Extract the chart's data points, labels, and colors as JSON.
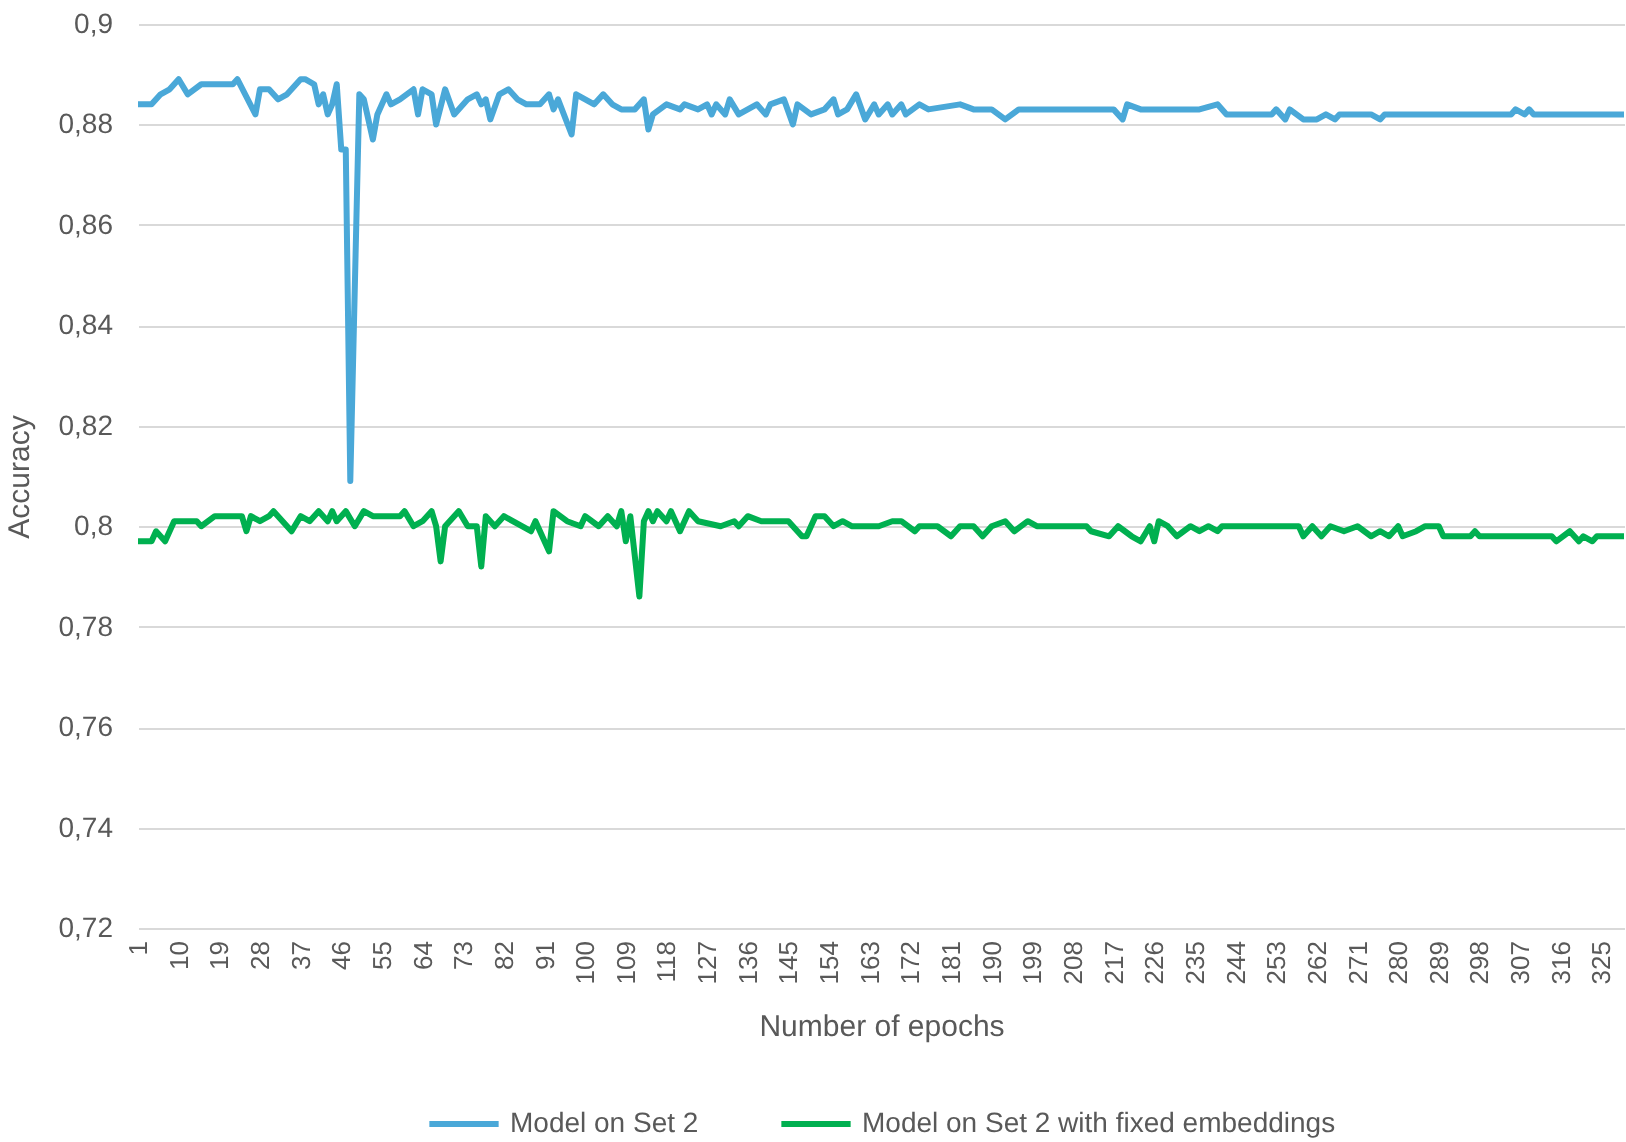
{
  "chart_data": {
    "type": "line",
    "xlabel": "Number of epochs",
    "ylabel": "Accuracy",
    "xlim": [
      1,
      330
    ],
    "xticks": [
      1,
      10,
      19,
      28,
      37,
      46,
      55,
      64,
      73,
      82,
      91,
      100,
      109,
      118,
      127,
      136,
      145,
      154,
      163,
      172,
      181,
      190,
      199,
      208,
      217,
      226,
      235,
      244,
      253,
      262,
      271,
      280,
      289,
      298,
      307,
      316,
      325
    ],
    "ylim": [
      0.72,
      0.9
    ],
    "yticks": [
      {
        "value": 0.72,
        "label": "0,72"
      },
      {
        "value": 0.74,
        "label": "0,74"
      },
      {
        "value": 0.76,
        "label": "0,76"
      },
      {
        "value": 0.78,
        "label": "0,78"
      },
      {
        "value": 0.8,
        "label": "0,8"
      },
      {
        "value": 0.82,
        "label": "0,82"
      },
      {
        "value": 0.84,
        "label": "0,84"
      },
      {
        "value": 0.86,
        "label": "0,86"
      },
      {
        "value": 0.88,
        "label": "0,88"
      },
      {
        "value": 0.9,
        "label": "0,9"
      }
    ],
    "grid": "y",
    "legend": "bottom",
    "series": [
      {
        "name": "Model on Set 2",
        "color": "#4aa8d8",
        "x": [
          1,
          4,
          6,
          8,
          10,
          12,
          15,
          22,
          23,
          27,
          28,
          30,
          32,
          34,
          37,
          38,
          40,
          41,
          42,
          43,
          44,
          45,
          46,
          47,
          48,
          50,
          51,
          53,
          54,
          56,
          57,
          59,
          62,
          63,
          64,
          66,
          67,
          69,
          71,
          74,
          76,
          77,
          78,
          79,
          81,
          83,
          85,
          87,
          90,
          92,
          93,
          94,
          97,
          98,
          100,
          102,
          104,
          106,
          108,
          111,
          113,
          114,
          115,
          118,
          121,
          122,
          125,
          127,
          128,
          129,
          131,
          132,
          134,
          138,
          140,
          141,
          144,
          146,
          147,
          150,
          153,
          155,
          156,
          158,
          160,
          162,
          164,
          165,
          167,
          168,
          170,
          171,
          174,
          176,
          183,
          186,
          190,
          193,
          196,
          200,
          217,
          219,
          220,
          223,
          236,
          240,
          242,
          252,
          253,
          255,
          256,
          259,
          262,
          264,
          266,
          267,
          274,
          276,
          277,
          305,
          306,
          308,
          309,
          310,
          330
        ],
        "values": [
          0.884,
          0.884,
          0.886,
          0.887,
          0.889,
          0.886,
          0.888,
          0.888,
          0.889,
          0.882,
          0.887,
          0.887,
          0.885,
          0.886,
          0.889,
          0.889,
          0.888,
          0.884,
          0.886,
          0.882,
          0.884,
          0.888,
          0.875,
          0.875,
          0.809,
          0.886,
          0.885,
          0.877,
          0.882,
          0.886,
          0.884,
          0.885,
          0.887,
          0.882,
          0.887,
          0.886,
          0.88,
          0.887,
          0.882,
          0.885,
          0.886,
          0.884,
          0.885,
          0.881,
          0.886,
          0.887,
          0.885,
          0.884,
          0.884,
          0.886,
          0.883,
          0.885,
          0.878,
          0.886,
          0.885,
          0.884,
          0.886,
          0.884,
          0.883,
          0.883,
          0.885,
          0.879,
          0.882,
          0.884,
          0.883,
          0.884,
          0.883,
          0.884,
          0.882,
          0.884,
          0.882,
          0.885,
          0.882,
          0.884,
          0.882,
          0.884,
          0.885,
          0.88,
          0.884,
          0.882,
          0.883,
          0.885,
          0.882,
          0.883,
          0.886,
          0.881,
          0.884,
          0.882,
          0.884,
          0.882,
          0.884,
          0.882,
          0.884,
          0.883,
          0.884,
          0.883,
          0.883,
          0.881,
          0.883,
          0.883,
          0.883,
          0.881,
          0.884,
          0.883,
          0.883,
          0.884,
          0.882,
          0.882,
          0.883,
          0.881,
          0.883,
          0.881,
          0.881,
          0.882,
          0.881,
          0.882,
          0.882,
          0.881,
          0.882,
          0.882,
          0.883,
          0.882,
          0.883,
          0.882,
          0.882
        ]
      },
      {
        "name": "Model on Set 2 with fixed embeddings",
        "color": "#00b050",
        "x": [
          1,
          4,
          5,
          7,
          9,
          14,
          15,
          18,
          24,
          25,
          26,
          28,
          30,
          31,
          33,
          35,
          37,
          39,
          41,
          43,
          44,
          45,
          47,
          49,
          51,
          53,
          59,
          60,
          62,
          64,
          66,
          67,
          68,
          69,
          72,
          74,
          76,
          77,
          78,
          80,
          82,
          86,
          88,
          89,
          92,
          93,
          96,
          99,
          100,
          103,
          105,
          107,
          108,
          109,
          110,
          112,
          113,
          114,
          115,
          116,
          118,
          119,
          121,
          123,
          125,
          130,
          133,
          134,
          136,
          139,
          145,
          146,
          148,
          149,
          151,
          153,
          155,
          157,
          159,
          165,
          168,
          170,
          173,
          174,
          178,
          181,
          183,
          186,
          188,
          190,
          193,
          195,
          198,
          200,
          211,
          212,
          216,
          218,
          221,
          223,
          225,
          226,
          227,
          229,
          231,
          234,
          236,
          238,
          240,
          241,
          258,
          259,
          261,
          263,
          265,
          268,
          271,
          274,
          276,
          278,
          280,
          281,
          284,
          286,
          289,
          290,
          296,
          297,
          298,
          314,
          315,
          318,
          320,
          321,
          323,
          324,
          330
        ],
        "values": [
          0.797,
          0.797,
          0.799,
          0.797,
          0.801,
          0.801,
          0.8,
          0.802,
          0.802,
          0.799,
          0.802,
          0.801,
          0.802,
          0.803,
          0.801,
          0.799,
          0.802,
          0.801,
          0.803,
          0.801,
          0.803,
          0.801,
          0.803,
          0.8,
          0.803,
          0.802,
          0.802,
          0.803,
          0.8,
          0.801,
          0.803,
          0.8,
          0.793,
          0.8,
          0.803,
          0.8,
          0.8,
          0.792,
          0.802,
          0.8,
          0.802,
          0.8,
          0.799,
          0.801,
          0.795,
          0.803,
          0.801,
          0.8,
          0.802,
          0.8,
          0.802,
          0.8,
          0.803,
          0.797,
          0.802,
          0.786,
          0.801,
          0.803,
          0.801,
          0.803,
          0.801,
          0.803,
          0.799,
          0.803,
          0.801,
          0.8,
          0.801,
          0.8,
          0.802,
          0.801,
          0.801,
          0.8,
          0.798,
          0.798,
          0.802,
          0.802,
          0.8,
          0.801,
          0.8,
          0.8,
          0.801,
          0.801,
          0.799,
          0.8,
          0.8,
          0.798,
          0.8,
          0.8,
          0.798,
          0.8,
          0.801,
          0.799,
          0.801,
          0.8,
          0.8,
          0.799,
          0.798,
          0.8,
          0.798,
          0.797,
          0.8,
          0.797,
          0.801,
          0.8,
          0.798,
          0.8,
          0.799,
          0.8,
          0.799,
          0.8,
          0.8,
          0.798,
          0.8,
          0.798,
          0.8,
          0.799,
          0.8,
          0.798,
          0.799,
          0.798,
          0.8,
          0.798,
          0.799,
          0.8,
          0.8,
          0.798,
          0.798,
          0.799,
          0.798,
          0.798,
          0.797,
          0.799,
          0.797,
          0.798,
          0.797,
          0.798,
          0.798
        ]
      }
    ]
  }
}
